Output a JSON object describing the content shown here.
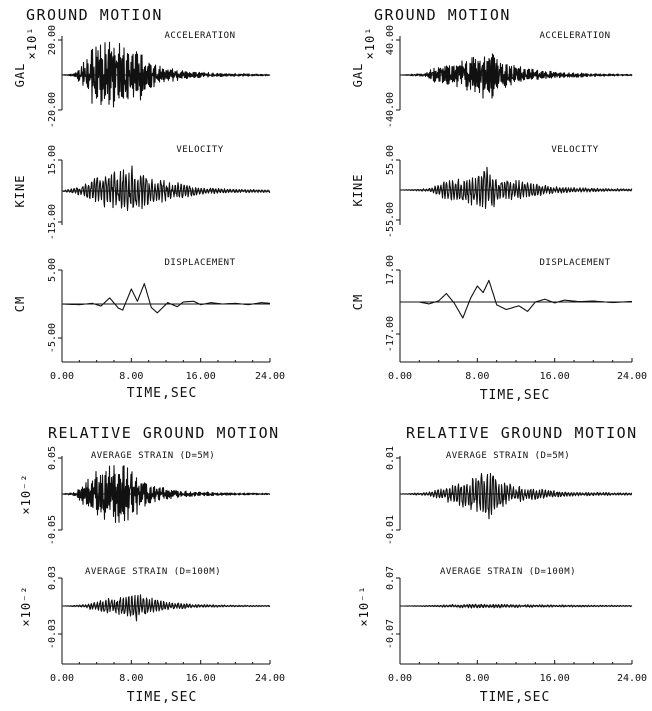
{
  "figure": {
    "headings": {
      "left_top": "GROUND MOTION",
      "right_top": "GROUND MOTION",
      "left_bottom": "RELATIVE GROUND MOTION",
      "right_bottom": "RELATIVE GROUND MOTION"
    },
    "time_axis": {
      "label": "TIME,SEC",
      "ticks": [
        0,
        8,
        16,
        24
      ],
      "tick_labels": [
        "0.00",
        "8.00",
        "16.00",
        "24.00"
      ],
      "range": [
        0,
        24
      ]
    }
  },
  "chart_data": [
    {
      "id": "L1",
      "type": "line",
      "title": "ACCELERATION",
      "ylabel": "GAL",
      "yscale_label": "×10¹",
      "ylim": [
        -20,
        20
      ],
      "yticks": [
        -20,
        20
      ],
      "ytick_labels": [
        "-20.00",
        "20.00"
      ],
      "xlim": [
        0,
        24
      ],
      "envelope": [
        [
          0,
          0
        ],
        [
          1.5,
          0.05
        ],
        [
          2.5,
          0.4
        ],
        [
          3.5,
          0.9
        ],
        [
          5.5,
          1.0
        ],
        [
          8.5,
          0.85
        ],
        [
          11,
          0.3
        ],
        [
          14,
          0.12
        ],
        [
          18,
          0.05
        ],
        [
          24,
          0.02
        ]
      ]
    },
    {
      "id": "L2",
      "type": "line",
      "title": "VELOCITY",
      "ylabel": "KINE",
      "ylim": [
        -15,
        15
      ],
      "yticks": [
        -15,
        15
      ],
      "ytick_labels": [
        "-15.00",
        "15.00"
      ],
      "xlim": [
        0,
        24
      ],
      "envelope": [
        [
          0,
          0
        ],
        [
          2.5,
          0.2
        ],
        [
          4,
          0.5
        ],
        [
          6,
          0.7
        ],
        [
          8,
          0.85
        ],
        [
          10,
          0.45
        ],
        [
          13,
          0.3
        ],
        [
          16,
          0.12
        ],
        [
          20,
          0.06
        ],
        [
          24,
          0.05
        ]
      ]
    },
    {
      "id": "L3",
      "type": "line",
      "title": "DISPLACEMENT",
      "ylabel": "CM",
      "ylim": [
        -5,
        5
      ],
      "yticks": [
        -5,
        5
      ],
      "ytick_labels": [
        "-5.00",
        "5.00"
      ],
      "xlim": [
        0,
        24
      ],
      "points": [
        [
          0,
          0
        ],
        [
          2,
          -0.1
        ],
        [
          3.5,
          0.1
        ],
        [
          4.5,
          -0.3
        ],
        [
          5.5,
          0.9
        ],
        [
          6.5,
          -0.6
        ],
        [
          7,
          -0.9
        ],
        [
          8,
          2.2
        ],
        [
          8.7,
          0.4
        ],
        [
          9.5,
          3.0
        ],
        [
          10.3,
          -0.5
        ],
        [
          11,
          -1.3
        ],
        [
          12.2,
          0.2
        ],
        [
          13.3,
          -0.4
        ],
        [
          14,
          0.3
        ],
        [
          15.2,
          0.4
        ],
        [
          16,
          -0.1
        ],
        [
          17.2,
          0.2
        ],
        [
          18.5,
          0.0
        ],
        [
          20,
          0.1
        ],
        [
          21.5,
          -0.1
        ],
        [
          23,
          0.2
        ],
        [
          24,
          0.1
        ]
      ]
    },
    {
      "id": "R1",
      "type": "line",
      "title": "ACCELERATION",
      "ylabel": "GAL",
      "yscale_label": "×10¹",
      "ylim": [
        -40,
        40
      ],
      "yticks": [
        -40,
        40
      ],
      "ytick_labels": [
        "-40.00",
        "40.00"
      ],
      "xlim": [
        0,
        24
      ],
      "envelope": [
        [
          0,
          0
        ],
        [
          2.5,
          0.05
        ],
        [
          3.5,
          0.22
        ],
        [
          5,
          0.32
        ],
        [
          6.5,
          0.45
        ],
        [
          8.5,
          0.75
        ],
        [
          9.2,
          0.8
        ],
        [
          10.5,
          0.4
        ],
        [
          13,
          0.2
        ],
        [
          16,
          0.1
        ],
        [
          20,
          0.04
        ],
        [
          24,
          0.02
        ]
      ]
    },
    {
      "id": "R2",
      "type": "line",
      "title": "VELOCITY",
      "ylabel": "KINE",
      "ylim": [
        -55,
        55
      ],
      "yticks": [
        -55,
        55
      ],
      "ytick_labels": [
        "-55.00",
        "55.00"
      ],
      "xlim": [
        0,
        24
      ],
      "envelope": [
        [
          0,
          0
        ],
        [
          3,
          0.05
        ],
        [
          4.5,
          0.3
        ],
        [
          6,
          0.45
        ],
        [
          8,
          0.6
        ],
        [
          9,
          0.8
        ],
        [
          10.5,
          0.4
        ],
        [
          13,
          0.3
        ],
        [
          16,
          0.12
        ],
        [
          20,
          0.06
        ],
        [
          24,
          0.04
        ]
      ]
    },
    {
      "id": "R3",
      "type": "line",
      "title": "DISPLACEMENT",
      "ylabel": "CM",
      "ylim": [
        -17,
        17
      ],
      "yticks": [
        -17,
        17
      ],
      "ytick_labels": [
        "-17.00",
        "17.00"
      ],
      "xlim": [
        0,
        24
      ],
      "points": [
        [
          0,
          0
        ],
        [
          2,
          0.0
        ],
        [
          3,
          -1.0
        ],
        [
          4,
          0.6
        ],
        [
          4.8,
          4.5
        ],
        [
          5.6,
          -0.5
        ],
        [
          6.5,
          -8.5
        ],
        [
          7.3,
          2.0
        ],
        [
          8,
          8.5
        ],
        [
          8.6,
          5.0
        ],
        [
          9.2,
          11.5
        ],
        [
          10,
          -1.5
        ],
        [
          11,
          -4.0
        ],
        [
          12.3,
          -2.0
        ],
        [
          13.2,
          -5.0
        ],
        [
          14,
          0.0
        ],
        [
          15,
          1.5
        ],
        [
          16,
          -0.5
        ],
        [
          17,
          1.0
        ],
        [
          18.5,
          0.2
        ],
        [
          20,
          0.5
        ],
        [
          22,
          -0.3
        ],
        [
          24,
          0.3
        ]
      ]
    },
    {
      "id": "L4",
      "type": "line",
      "title": "AVERAGE STRAIN (D=5M)",
      "yscale_label": "×10⁻²",
      "ylim": [
        -0.05,
        0.05
      ],
      "yticks": [
        -0.05,
        0.05
      ],
      "ytick_labels": [
        "-0.05",
        "0.05"
      ],
      "xlim": [
        0,
        24
      ],
      "envelope": [
        [
          0,
          0
        ],
        [
          1.5,
          0.05
        ],
        [
          2.5,
          0.35
        ],
        [
          4,
          0.75
        ],
        [
          6,
          0.9
        ],
        [
          8,
          0.75
        ],
        [
          10,
          0.35
        ],
        [
          12,
          0.15
        ],
        [
          15,
          0.07
        ],
        [
          20,
          0.03
        ],
        [
          24,
          0.02
        ]
      ]
    },
    {
      "id": "L5",
      "type": "line",
      "title": "AVERAGE STRAIN (D=100M)",
      "yscale_label": "×10⁻²",
      "ylim": [
        -0.03,
        0.03
      ],
      "yticks": [
        -0.03,
        0.03
      ],
      "ytick_labels": [
        "-0.03",
        "0.03"
      ],
      "xlim": [
        0,
        24
      ],
      "envelope": [
        [
          0,
          0
        ],
        [
          2.5,
          0.05
        ],
        [
          4,
          0.2
        ],
        [
          6,
          0.35
        ],
        [
          7.5,
          0.45
        ],
        [
          8.5,
          0.55
        ],
        [
          9.5,
          0.35
        ],
        [
          12,
          0.15
        ],
        [
          15,
          0.07
        ],
        [
          20,
          0.03
        ],
        [
          24,
          0.02
        ]
      ]
    },
    {
      "id": "R4",
      "type": "line",
      "title": "AVERAGE STRAIN (D=5M)",
      "ylim": [
        -0.01,
        0.01
      ],
      "yticks": [
        -0.01,
        0.01
      ],
      "ytick_labels": [
        "-0.01",
        "0.01"
      ],
      "xlim": [
        0,
        24
      ],
      "envelope": [
        [
          0,
          0
        ],
        [
          3,
          0.05
        ],
        [
          4.5,
          0.2
        ],
        [
          6,
          0.35
        ],
        [
          8,
          0.5
        ],
        [
          9,
          0.75
        ],
        [
          10.5,
          0.4
        ],
        [
          12,
          0.25
        ],
        [
          15,
          0.12
        ],
        [
          18,
          0.06
        ],
        [
          24,
          0.03
        ]
      ]
    },
    {
      "id": "R5",
      "type": "line",
      "title": "AVERAGE STRAIN (D=100M)",
      "yscale_label": "×10⁻¹",
      "ylim": [
        -0.07,
        0.07
      ],
      "yticks": [
        -0.07,
        0.07
      ],
      "ytick_labels": [
        "-0.07",
        "0.07"
      ],
      "xlim": [
        0,
        24
      ],
      "envelope": [
        [
          0,
          0
        ],
        [
          4,
          0.03
        ],
        [
          6,
          0.06
        ],
        [
          8,
          0.08
        ],
        [
          10,
          0.07
        ],
        [
          13,
          0.05
        ],
        [
          16,
          0.04
        ],
        [
          20,
          0.03
        ],
        [
          24,
          0.02
        ]
      ]
    }
  ]
}
